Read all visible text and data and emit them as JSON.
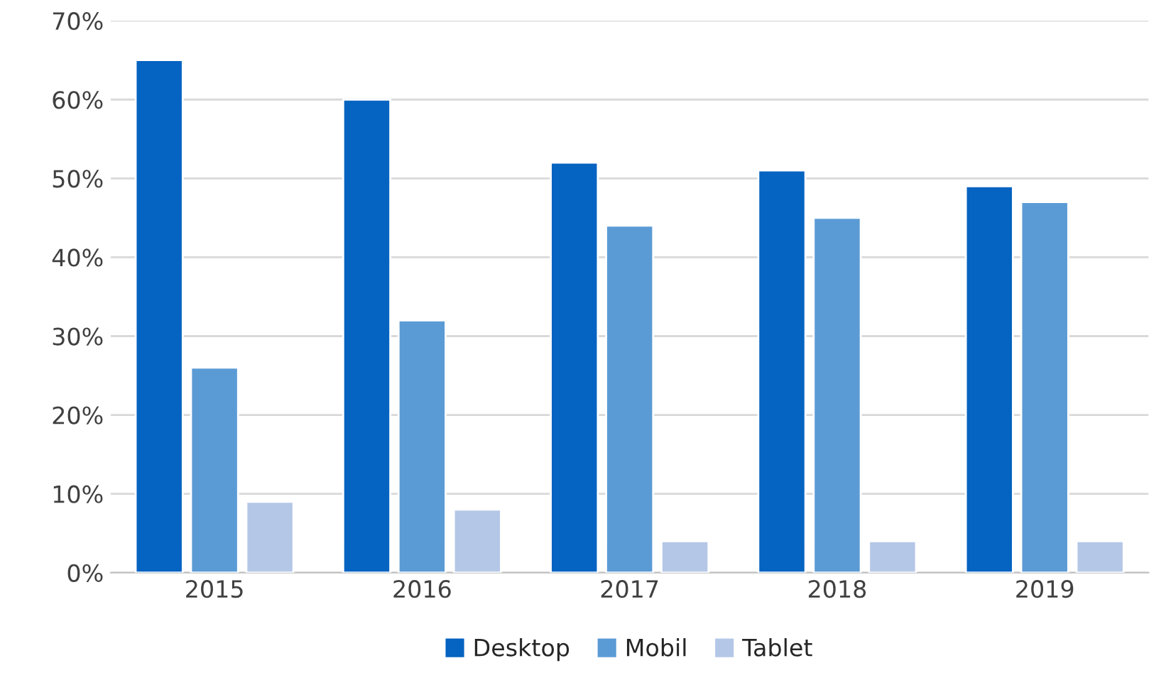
{
  "chart_data": {
    "type": "bar",
    "categories": [
      "2015",
      "2016",
      "2017",
      "2018",
      "2019"
    ],
    "series": [
      {
        "name": "Desktop",
        "color": "#0563c1",
        "values": [
          65,
          60,
          52,
          51,
          49
        ]
      },
      {
        "name": "Mobil",
        "color": "#5b9bd5",
        "values": [
          26,
          32,
          44,
          45,
          47
        ]
      },
      {
        "name": "Tablet",
        "color": "#b4c7e7",
        "values": [
          9,
          8,
          4,
          4,
          4
        ]
      }
    ],
    "ylim": [
      0,
      70
    ],
    "yticks": [
      {
        "value": 0,
        "label": "0%"
      },
      {
        "value": 10,
        "label": "10%"
      },
      {
        "value": 20,
        "label": "20%"
      },
      {
        "value": 30,
        "label": "30%"
      },
      {
        "value": 40,
        "label": "40%"
      },
      {
        "value": 50,
        "label": "50%"
      },
      {
        "value": 60,
        "label": "60%"
      },
      {
        "value": 70,
        "label": "70%"
      }
    ],
    "grid": "y",
    "legend": "bottom"
  }
}
